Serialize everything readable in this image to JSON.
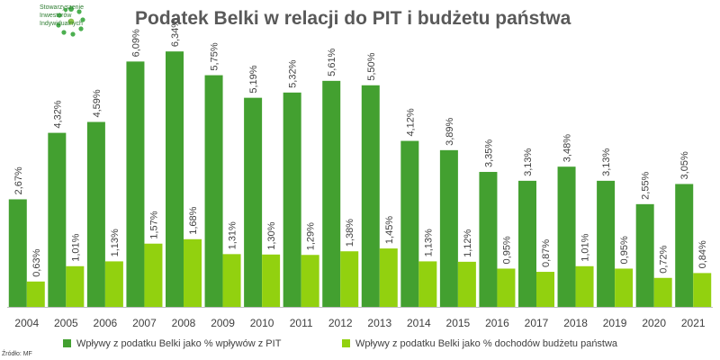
{
  "logo": {
    "name": "stowarzyszenie-inwestorow-indywidualnych-logo",
    "lines": [
      "Stowarzyszenie",
      "Inwestorów",
      "Indywidualnych"
    ]
  },
  "source": "Źródło: MF",
  "colors": {
    "pit": "#43a030",
    "budget": "#92d10f",
    "axis": "#bfbfbf",
    "label": "#404040"
  },
  "chart_data": {
    "type": "bar",
    "title": "Podatek Belki w relacji do PIT i budżetu państwa",
    "categories": [
      "2004",
      "2005",
      "2006",
      "2007",
      "2008",
      "2009",
      "2010",
      "2011",
      "2012",
      "2013",
      "2014",
      "2015",
      "2016",
      "2017",
      "2018",
      "2019",
      "2020",
      "2021"
    ],
    "series": [
      {
        "name": "Wpływy z podatku Belki jako % wpływów z PIT",
        "values": [
          2.67,
          4.32,
          4.59,
          6.09,
          6.34,
          5.75,
          5.19,
          5.32,
          5.61,
          5.5,
          4.12,
          3.89,
          3.35,
          3.13,
          3.48,
          3.13,
          2.55,
          3.05
        ],
        "labels": [
          "2,67%",
          "4,32%",
          "4,59%",
          "6,09%",
          "6,34%",
          "5,75%",
          "5,19%",
          "5,32%",
          "5,61%",
          "5,50%",
          "4,12%",
          "3,89%",
          "3,35%",
          "3,13%",
          "3,48%",
          "3,13%",
          "2,55%",
          "3,05%"
        ]
      },
      {
        "name": "Wpływy z podatku Belki jako % dochodów budżetu państwa",
        "values": [
          0.63,
          1.01,
          1.13,
          1.57,
          1.68,
          1.31,
          1.3,
          1.29,
          1.38,
          1.45,
          1.13,
          1.12,
          0.95,
          0.87,
          1.01,
          0.95,
          0.72,
          0.84
        ],
        "labels": [
          "0,63%",
          "1,01%",
          "1,13%",
          "1,57%",
          "1,68%",
          "1,31%",
          "1,30%",
          "1,29%",
          "1,38%",
          "1,45%",
          "1,13%",
          "1,12%",
          "0,95%",
          "0,87%",
          "1,01%",
          "0,95%",
          "0,72%",
          "0,84%"
        ]
      }
    ],
    "ylim": [
      0,
      6.5
    ],
    "grid": false,
    "legend_position": "bottom"
  }
}
